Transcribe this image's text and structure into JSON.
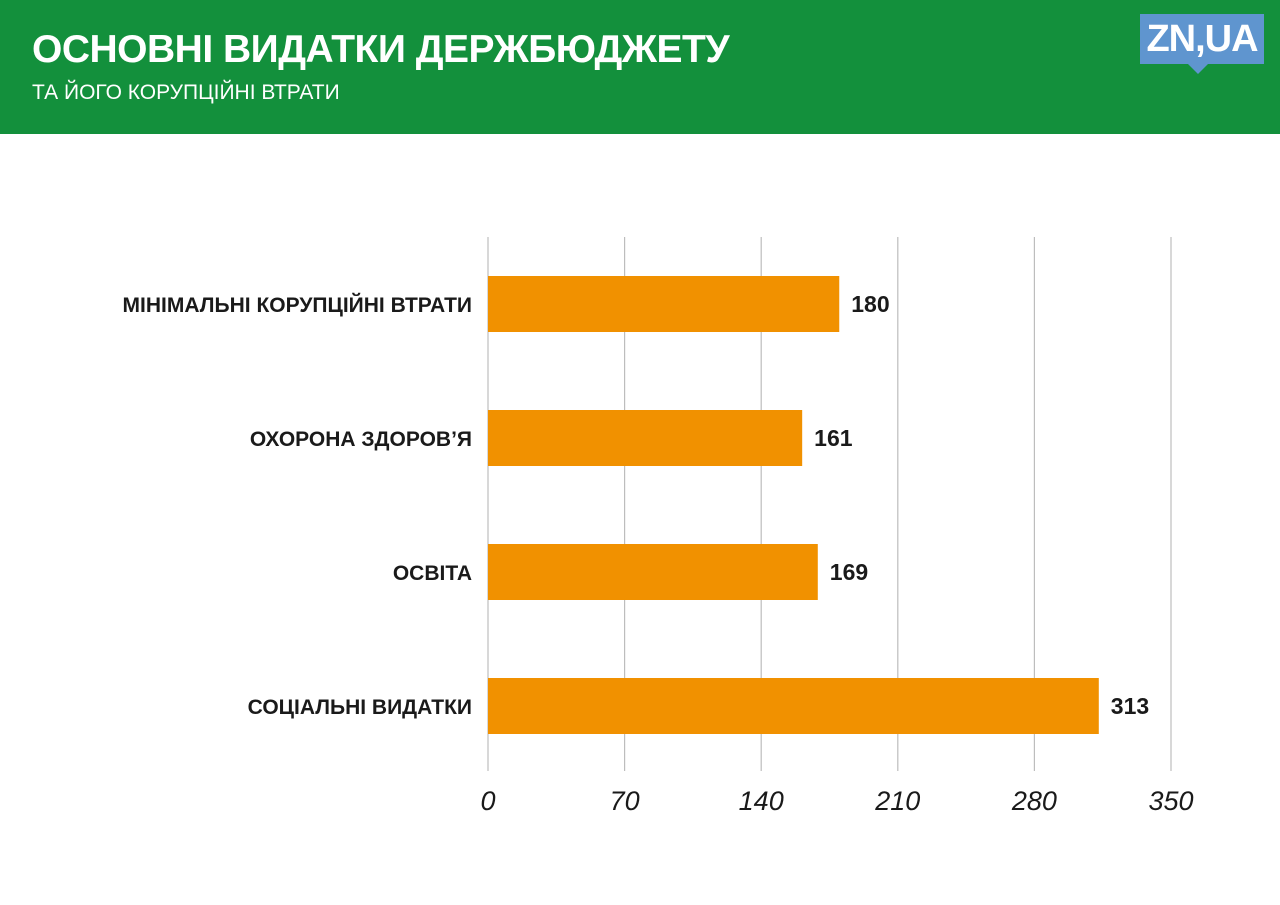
{
  "header": {
    "title": "ОСНОВНІ ВИДАТКИ ДЕРЖБЮДЖЕТУ",
    "subtitle": "ТА ЙОГО КОРУПЦІЙНІ ВТРАТИ",
    "logo_text": "ZN,UA"
  },
  "colors": {
    "header_bg": "#13903c",
    "bar": "#f19100",
    "grid": "#bdbdbd",
    "logo_bg": "#5f95cf"
  },
  "chart_data": {
    "type": "bar",
    "orientation": "horizontal",
    "categories": [
      "МІНІМАЛЬНІ КОРУПЦІЙНІ ВТРАТИ",
      "ОХОРОНА ЗДОРОВ’Я",
      "ОСВІТА",
      "СОЦІАЛЬНІ ВИДАТКИ"
    ],
    "values": [
      180,
      161,
      169,
      313
    ],
    "value_labels": [
      "180",
      "161",
      "169",
      "313"
    ],
    "title": "",
    "xlabel": "",
    "ylabel": "",
    "xlim": [
      0,
      350
    ],
    "xticks": [
      0,
      70,
      140,
      210,
      280,
      350
    ],
    "tick_labels": [
      "0",
      "70",
      "140",
      "210",
      "280",
      "350"
    ],
    "grid": true,
    "legend": "none"
  }
}
